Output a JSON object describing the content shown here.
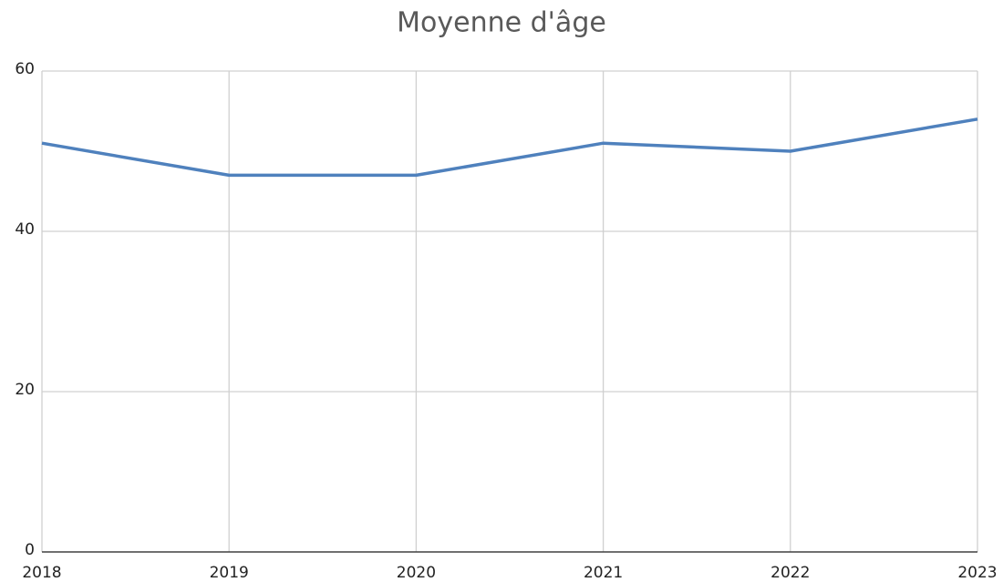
{
  "chart_data": {
    "type": "line",
    "title": "Moyenne d'âge",
    "x": [
      2018,
      2019,
      2020,
      2021,
      2022,
      2023
    ],
    "series": [
      {
        "name": "Moyenne d'âge",
        "color": "#4f81bd",
        "values": [
          51,
          47,
          47,
          51,
          50,
          54
        ]
      }
    ],
    "xlim": [
      2018,
      2023
    ],
    "xticks": [
      2018,
      2019,
      2020,
      2021,
      2022,
      2023
    ],
    "ylim": [
      0,
      60
    ],
    "yticks": [
      0,
      20,
      40,
      60
    ],
    "grid": true
  }
}
